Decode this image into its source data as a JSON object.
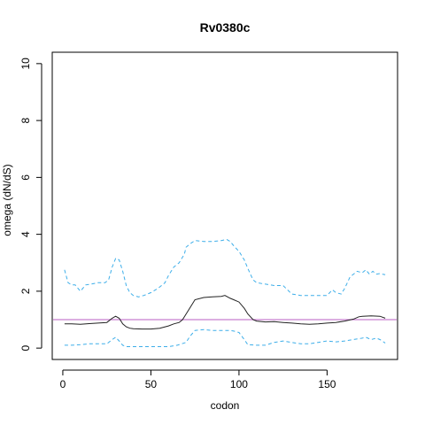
{
  "chart_data": {
    "type": "line",
    "title": "Rv0380c",
    "xlabel": "codon",
    "ylabel": "omega (dN/dS)",
    "xlim": [
      -6,
      190
    ],
    "ylim": [
      -0.4,
      10.4
    ],
    "xticks": [
      0,
      50,
      100,
      150
    ],
    "yticks": [
      0,
      2,
      4,
      6,
      8,
      10
    ],
    "grid": false,
    "reference_line": {
      "y": 1,
      "color": "#c77dcf"
    },
    "series": [
      {
        "style": "dashed",
        "color": "#3daee9",
        "x": [
          1,
          3,
          5,
          7,
          10,
          13,
          16,
          20,
          24,
          26,
          28,
          30,
          32,
          34,
          36,
          38,
          40,
          43,
          46,
          50,
          54,
          58,
          60,
          63,
          66,
          69,
          70,
          73,
          75,
          80,
          85,
          90,
          93,
          95,
          97,
          100,
          103,
          105,
          108,
          110,
          115,
          120,
          125,
          130,
          135,
          140,
          145,
          150,
          153,
          155,
          158,
          160,
          163,
          165,
          167,
          170,
          172,
          174,
          176,
          178,
          180,
          183
        ],
        "values": [
          2.75,
          2.3,
          2.22,
          2.22,
          2.0,
          2.22,
          2.25,
          2.3,
          2.3,
          2.4,
          2.85,
          3.15,
          3.1,
          2.7,
          2.2,
          1.95,
          1.85,
          1.8,
          1.85,
          1.95,
          2.1,
          2.3,
          2.55,
          2.85,
          3.0,
          3.3,
          3.55,
          3.7,
          3.78,
          3.75,
          3.75,
          3.78,
          3.82,
          3.75,
          3.6,
          3.4,
          3.1,
          2.8,
          2.4,
          2.3,
          2.25,
          2.2,
          2.2,
          1.9,
          1.85,
          1.85,
          1.85,
          1.85,
          2.05,
          1.95,
          1.9,
          2.1,
          2.5,
          2.6,
          2.7,
          2.65,
          2.75,
          2.6,
          2.7,
          2.6,
          2.62,
          2.58
        ]
      },
      {
        "style": "solid",
        "color": "#222222",
        "x": [
          1,
          3,
          5,
          10,
          15,
          20,
          25,
          28,
          30,
          32,
          34,
          36,
          38,
          40,
          45,
          50,
          55,
          60,
          63,
          66,
          68,
          70,
          73,
          75,
          80,
          85,
          90,
          92,
          95,
          97,
          100,
          103,
          105,
          108,
          110,
          115,
          120,
          125,
          130,
          135,
          140,
          145,
          150,
          155,
          160,
          165,
          168,
          170,
          175,
          180,
          183
        ],
        "values": [
          0.85,
          0.85,
          0.85,
          0.84,
          0.86,
          0.88,
          0.9,
          1.05,
          1.12,
          1.05,
          0.85,
          0.75,
          0.7,
          0.68,
          0.67,
          0.67,
          0.7,
          0.78,
          0.85,
          0.9,
          1.0,
          1.2,
          1.5,
          1.7,
          1.78,
          1.8,
          1.82,
          1.85,
          1.75,
          1.7,
          1.62,
          1.4,
          1.2,
          1.0,
          0.95,
          0.92,
          0.93,
          0.9,
          0.88,
          0.85,
          0.84,
          0.85,
          0.88,
          0.9,
          0.95,
          1.02,
          1.1,
          1.12,
          1.13,
          1.12,
          1.05
        ]
      },
      {
        "style": "dashed",
        "color": "#3daee9",
        "x": [
          1,
          5,
          10,
          15,
          20,
          25,
          28,
          30,
          32,
          34,
          36,
          40,
          45,
          50,
          55,
          60,
          65,
          70,
          72,
          75,
          80,
          85,
          90,
          95,
          97,
          100,
          103,
          105,
          110,
          115,
          120,
          125,
          130,
          135,
          140,
          145,
          150,
          155,
          160,
          165,
          170,
          172,
          175,
          178,
          180,
          183
        ],
        "values": [
          0.1,
          0.1,
          0.12,
          0.15,
          0.15,
          0.15,
          0.3,
          0.38,
          0.25,
          0.1,
          0.05,
          0.05,
          0.05,
          0.05,
          0.05,
          0.05,
          0.1,
          0.2,
          0.4,
          0.62,
          0.65,
          0.62,
          0.62,
          0.62,
          0.6,
          0.55,
          0.3,
          0.12,
          0.1,
          0.1,
          0.2,
          0.25,
          0.2,
          0.15,
          0.15,
          0.2,
          0.25,
          0.22,
          0.25,
          0.3,
          0.35,
          0.38,
          0.3,
          0.35,
          0.3,
          0.18
        ]
      }
    ]
  }
}
